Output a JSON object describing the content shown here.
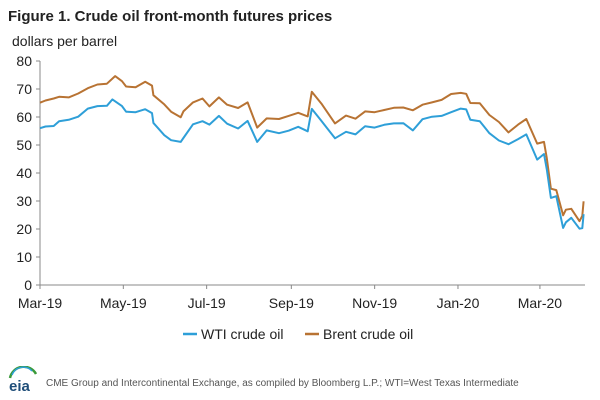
{
  "figure": {
    "title": "Figure 1. Crude oil front-month futures prices",
    "source": "CME Group and Intercontinental Exchange, as compiled by Bloomberg L.P.; WTI=West Texas Intermediate",
    "logo_text": "eia"
  },
  "chart_data": {
    "type": "line",
    "ylabel": "dollars per barrel",
    "ylim": [
      0,
      80
    ],
    "yticks": [
      0,
      10,
      20,
      30,
      40,
      50,
      60,
      70,
      80
    ],
    "xlim": [
      "2019-03-01",
      "2020-04-03"
    ],
    "xticks": [
      {
        "date": "2019-03-01",
        "label": "Mar-19"
      },
      {
        "date": "2019-05-01",
        "label": "May-19"
      },
      {
        "date": "2019-07-01",
        "label": "Jul-19"
      },
      {
        "date": "2019-09-01",
        "label": "Sep-19"
      },
      {
        "date": "2019-11-01",
        "label": "Nov-19"
      },
      {
        "date": "2020-01-01",
        "label": "Jan-20"
      },
      {
        "date": "2020-03-01",
        "label": "Mar-20"
      }
    ],
    "grid": false,
    "legend": "bottom",
    "series": [
      {
        "name": "WTI crude oil",
        "color": "#2E9FD8",
        "points": [
          [
            "2019-03-01",
            56.0
          ],
          [
            "2019-03-05",
            56.6
          ],
          [
            "2019-03-11",
            56.8
          ],
          [
            "2019-03-15",
            58.5
          ],
          [
            "2019-03-22",
            59.0
          ],
          [
            "2019-03-29",
            60.1
          ],
          [
            "2019-04-05",
            63.0
          ],
          [
            "2019-04-12",
            63.9
          ],
          [
            "2019-04-19",
            64.0
          ],
          [
            "2019-04-23",
            66.3
          ],
          [
            "2019-04-30",
            63.9
          ],
          [
            "2019-05-03",
            61.9
          ],
          [
            "2019-05-10",
            61.7
          ],
          [
            "2019-05-17",
            62.8
          ],
          [
            "2019-05-22",
            61.4
          ],
          [
            "2019-05-23",
            57.9
          ],
          [
            "2019-05-31",
            53.5
          ],
          [
            "2019-06-05",
            51.7
          ],
          [
            "2019-06-12",
            51.1
          ],
          [
            "2019-06-14",
            52.5
          ],
          [
            "2019-06-21",
            57.4
          ],
          [
            "2019-06-28",
            58.5
          ],
          [
            "2019-07-03",
            57.3
          ],
          [
            "2019-07-10",
            60.4
          ],
          [
            "2019-07-16",
            57.6
          ],
          [
            "2019-07-24",
            55.9
          ],
          [
            "2019-07-31",
            58.6
          ],
          [
            "2019-08-07",
            51.1
          ],
          [
            "2019-08-14",
            55.2
          ],
          [
            "2019-08-23",
            54.2
          ],
          [
            "2019-08-30",
            55.1
          ],
          [
            "2019-09-06",
            56.5
          ],
          [
            "2019-09-13",
            54.9
          ],
          [
            "2019-09-16",
            62.9
          ],
          [
            "2019-09-23",
            58.6
          ],
          [
            "2019-10-03",
            52.4
          ],
          [
            "2019-10-11",
            54.7
          ],
          [
            "2019-10-18",
            53.8
          ],
          [
            "2019-10-25",
            56.7
          ],
          [
            "2019-11-01",
            56.2
          ],
          [
            "2019-11-08",
            57.2
          ],
          [
            "2019-11-15",
            57.7
          ],
          [
            "2019-11-22",
            57.8
          ],
          [
            "2019-11-29",
            55.2
          ],
          [
            "2019-12-06",
            59.2
          ],
          [
            "2019-12-13",
            60.1
          ],
          [
            "2019-12-20",
            60.4
          ],
          [
            "2019-12-27",
            61.7
          ],
          [
            "2020-01-03",
            63.0
          ],
          [
            "2020-01-07",
            62.7
          ],
          [
            "2020-01-10",
            59.0
          ],
          [
            "2020-01-17",
            58.5
          ],
          [
            "2020-01-24",
            54.2
          ],
          [
            "2020-01-31",
            51.6
          ],
          [
            "2020-02-07",
            50.3
          ],
          [
            "2020-02-14",
            52.1
          ],
          [
            "2020-02-20",
            53.8
          ],
          [
            "2020-02-28",
            44.8
          ],
          [
            "2020-03-04",
            46.8
          ],
          [
            "2020-03-06",
            41.3
          ],
          [
            "2020-03-09",
            31.1
          ],
          [
            "2020-03-13",
            31.7
          ],
          [
            "2020-03-18",
            20.4
          ],
          [
            "2020-03-20",
            22.4
          ],
          [
            "2020-03-24",
            24.0
          ],
          [
            "2020-03-30",
            20.1
          ],
          [
            "2020-04-01",
            20.3
          ],
          [
            "2020-04-02",
            25.3
          ]
        ]
      },
      {
        "name": "Brent crude oil",
        "color": "#B87333",
        "points": [
          [
            "2019-03-01",
            65.1
          ],
          [
            "2019-03-05",
            65.9
          ],
          [
            "2019-03-11",
            66.6
          ],
          [
            "2019-03-15",
            67.2
          ],
          [
            "2019-03-22",
            67.0
          ],
          [
            "2019-03-29",
            68.4
          ],
          [
            "2019-04-05",
            70.3
          ],
          [
            "2019-04-12",
            71.6
          ],
          [
            "2019-04-19",
            71.9
          ],
          [
            "2019-04-25",
            74.6
          ],
          [
            "2019-04-30",
            72.8
          ],
          [
            "2019-05-03",
            70.9
          ],
          [
            "2019-05-10",
            70.6
          ],
          [
            "2019-05-17",
            72.6
          ],
          [
            "2019-05-22",
            71.2
          ],
          [
            "2019-05-23",
            67.8
          ],
          [
            "2019-05-31",
            64.5
          ],
          [
            "2019-06-05",
            61.9
          ],
          [
            "2019-06-12",
            59.9
          ],
          [
            "2019-06-14",
            62.0
          ],
          [
            "2019-06-21",
            65.2
          ],
          [
            "2019-06-28",
            66.6
          ],
          [
            "2019-07-03",
            63.8
          ],
          [
            "2019-07-10",
            67.0
          ],
          [
            "2019-07-16",
            64.4
          ],
          [
            "2019-07-24",
            63.2
          ],
          [
            "2019-07-31",
            65.2
          ],
          [
            "2019-08-07",
            56.2
          ],
          [
            "2019-08-14",
            59.5
          ],
          [
            "2019-08-23",
            59.3
          ],
          [
            "2019-08-30",
            60.4
          ],
          [
            "2019-09-06",
            61.5
          ],
          [
            "2019-09-13",
            60.2
          ],
          [
            "2019-09-16",
            69.0
          ],
          [
            "2019-09-23",
            64.8
          ],
          [
            "2019-10-03",
            57.7
          ],
          [
            "2019-10-11",
            60.5
          ],
          [
            "2019-10-18",
            59.4
          ],
          [
            "2019-10-25",
            62.0
          ],
          [
            "2019-11-01",
            61.7
          ],
          [
            "2019-11-08",
            62.5
          ],
          [
            "2019-11-15",
            63.3
          ],
          [
            "2019-11-22",
            63.4
          ],
          [
            "2019-11-29",
            62.4
          ],
          [
            "2019-12-06",
            64.4
          ],
          [
            "2019-12-13",
            65.2
          ],
          [
            "2019-12-20",
            66.1
          ],
          [
            "2019-12-27",
            68.2
          ],
          [
            "2020-01-03",
            68.6
          ],
          [
            "2020-01-07",
            68.3
          ],
          [
            "2020-01-10",
            65.0
          ],
          [
            "2020-01-17",
            64.9
          ],
          [
            "2020-01-24",
            60.7
          ],
          [
            "2020-01-31",
            58.2
          ],
          [
            "2020-02-07",
            54.5
          ],
          [
            "2020-02-14",
            57.3
          ],
          [
            "2020-02-20",
            59.3
          ],
          [
            "2020-02-28",
            50.5
          ],
          [
            "2020-03-04",
            51.1
          ],
          [
            "2020-03-06",
            45.3
          ],
          [
            "2020-03-09",
            34.4
          ],
          [
            "2020-03-13",
            33.9
          ],
          [
            "2020-03-18",
            24.9
          ],
          [
            "2020-03-20",
            26.9
          ],
          [
            "2020-03-24",
            27.2
          ],
          [
            "2020-03-30",
            22.8
          ],
          [
            "2020-04-01",
            24.7
          ],
          [
            "2020-04-02",
            29.9
          ]
        ]
      }
    ]
  }
}
